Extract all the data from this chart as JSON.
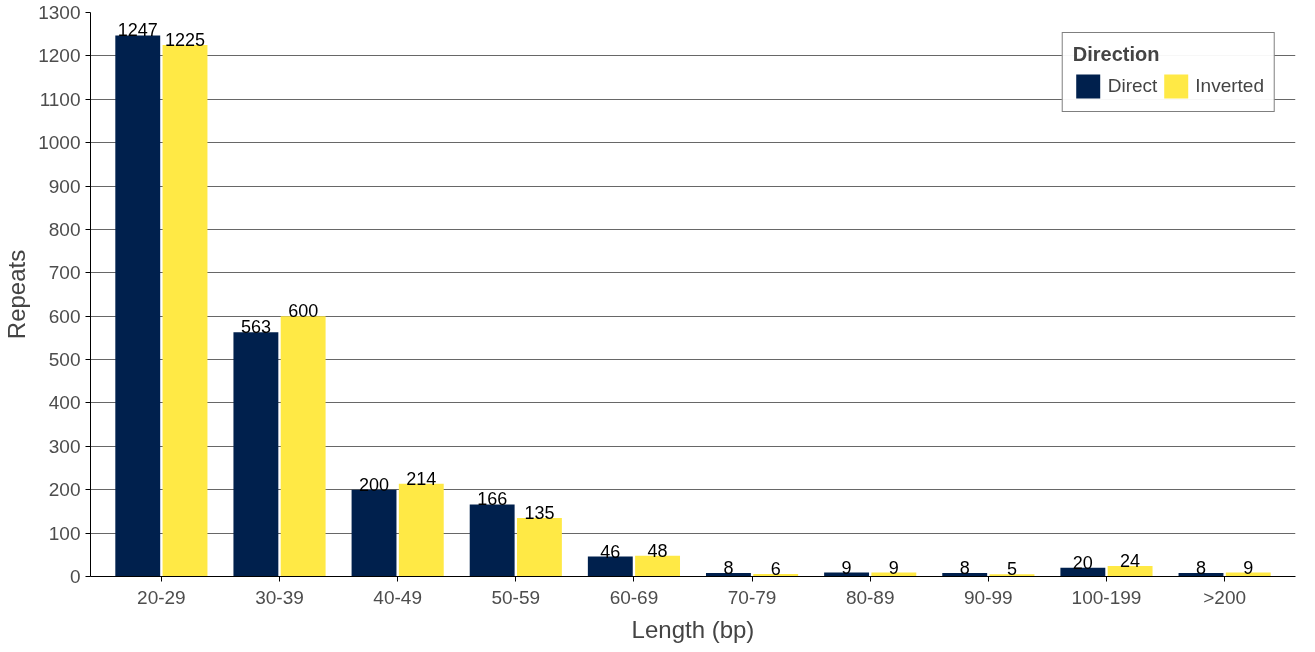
{
  "chart_data": {
    "type": "bar",
    "xlabel": "Length (bp)",
    "ylabel": "Repeats",
    "legend_title": "Direction",
    "categories": [
      "20-29",
      "30-39",
      "40-49",
      "50-59",
      "60-69",
      "70-79",
      "80-89",
      "90-99",
      "100-199",
      ">200"
    ],
    "series": [
      {
        "name": "Direct",
        "color": "#00204d",
        "values": [
          1247,
          563,
          200,
          166,
          46,
          8,
          9,
          8,
          20,
          8
        ]
      },
      {
        "name": "Inverted",
        "color": "#ffe945",
        "values": [
          1225,
          600,
          214,
          135,
          48,
          6,
          9,
          5,
          24,
          9
        ]
      }
    ],
    "ylim": [
      0,
      1300
    ],
    "yticks": [
      0,
      100,
      200,
      300,
      400,
      500,
      600,
      700,
      800,
      900,
      1000,
      1100,
      1200,
      1300
    ],
    "grid": "y",
    "legend": "top right",
    "data_labels": true
  }
}
